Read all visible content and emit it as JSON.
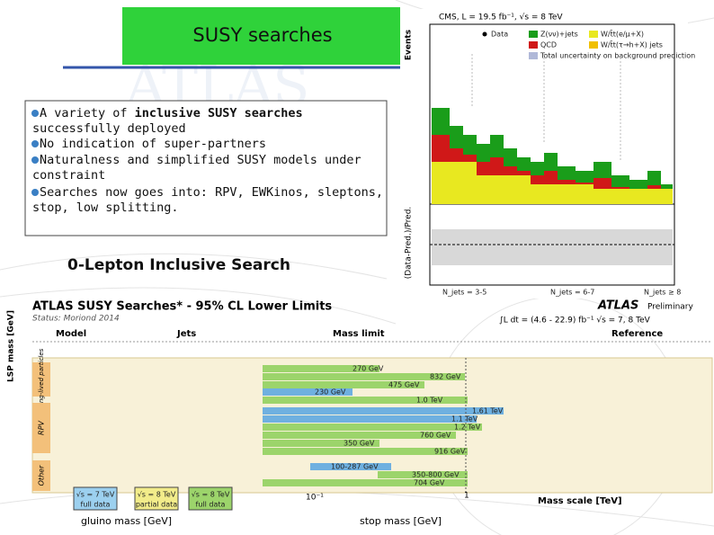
{
  "watermark": "ATLAS",
  "header": {
    "title": "SUSY searches"
  },
  "bullets": [
    {
      "pre": " A variety of ",
      "bold": "inclusive SUSY searches",
      "cont": "successfully deployed"
    },
    {
      "text": " No indication of super-partners"
    },
    {
      "text": " Naturalness and simplified SUSY models under",
      "cont": "constraint"
    },
    {
      "text": " Searches now goes into: RPV, EWKinos, sleptons,",
      "cont": "stop, low splitting."
    }
  ],
  "cms": {
    "header": "CMS, L = 19.5 fb⁻¹, √s = 8 TeV",
    "y_label": "Events",
    "ratio_label": "(Data-Pred.)/Pred.",
    "legend": [
      "Data",
      "Z(νν)+jets",
      "W/t̄t(e/μ+X)",
      "QCD",
      "W/t̄t(τ→h+X) jets",
      "Total uncertainty on background prediction"
    ],
    "njets": [
      "N_jets = 3-5",
      "N_jets = 6-7",
      "N_jets ≥ 8"
    ]
  },
  "atlas": {
    "heading": "0-Lepton Inclusive Search",
    "title": "ATLAS SUSY Searches* - 95% CL Lower Limits",
    "status": "Status: Moriond 2014",
    "logo": "ATLAS",
    "preliminary": "Preliminary",
    "lumi": "∫L dt = (4.6 - 22.9) fb⁻¹   √s = 7, 8 TeV",
    "columns": [
      "Model",
      "Jets",
      "Mass limit",
      "Reference"
    ],
    "lsp_axis": "LSP mass [GeV]",
    "sections": [
      "Long-lived particles",
      "RPV",
      "Other"
    ],
    "limits": [
      "270 GeV",
      "832 GeV",
      "475 GeV",
      "230 GeV",
      "1.0 TeV",
      "1.61 TeV",
      "1.1 TeV",
      "1.2 TeV",
      "760 GeV",
      "350 GeV",
      "916 GeV",
      "100-287 GeV",
      "350-800 GeV",
      "704 GeV"
    ],
    "axis_ticks": [
      "10⁻¹",
      "1"
    ],
    "x_label": "Mass scale [TeV]",
    "energy": [
      {
        "top": "√s = 7 TeV",
        "bottom": "full data"
      },
      {
        "top": "√s = 8 TeV",
        "bottom": "partial data"
      },
      {
        "top": "√s = 8 TeV",
        "bottom": "full data"
      }
    ],
    "gluino_label": "gluino mass [GeV]",
    "stop_label": "stop mass [GeV]"
  }
}
